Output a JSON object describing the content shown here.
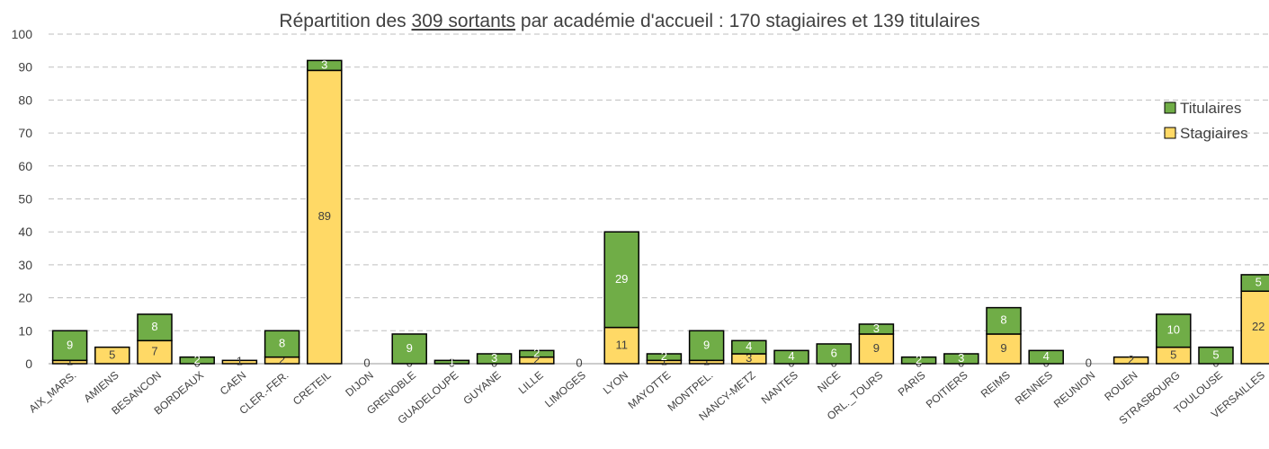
{
  "chart_data": {
    "type": "stacked_bar",
    "title": [
      "Répartition des ",
      "309 sortants",
      " par académie d'accueil : 170 stagiaires et 139 titulaires"
    ],
    "categories": [
      "AIX_MARS.",
      "AMIENS",
      "BESANCON",
      "BORDEAUX",
      "CAEN",
      "CLER.-FER.",
      "CRETEIL",
      "DIJON",
      "GRENOBLE",
      "GUADELOUPE",
      "GUYANE",
      "LILLE",
      "LIMOGES",
      "LYON",
      "MAYOTTE",
      "MONTPEL.",
      "NANCY-METZ",
      "NANTES",
      "NICE",
      "ORL._TOURS",
      "PARIS",
      "POITIERS",
      "REIMS",
      "RENNES",
      "REUNION",
      "ROUEN",
      "STRASBOURG",
      "TOULOUSE",
      "VERSAILLES"
    ],
    "series": [
      {
        "name": "Stagiaires",
        "color": "#ffd966",
        "values": [
          1,
          5,
          7,
          0,
          1,
          2,
          89,
          0,
          0,
          0,
          0,
          2,
          0,
          11,
          1,
          1,
          3,
          0,
          0,
          9,
          0,
          0,
          9,
          0,
          0,
          2,
          5,
          0,
          22
        ]
      },
      {
        "name": "Titulaires",
        "color": "#70ad47",
        "values": [
          9,
          0,
          8,
          2,
          0,
          8,
          3,
          0,
          9,
          1,
          3,
          2,
          0,
          29,
          2,
          9,
          4,
          4,
          6,
          3,
          2,
          3,
          8,
          4,
          0,
          0,
          10,
          5,
          5
        ]
      }
    ],
    "ylim": [
      0,
      100
    ],
    "yticks": [
      0,
      10,
      20,
      30,
      40,
      50,
      60,
      70,
      80,
      90,
      100
    ],
    "grid": true,
    "legend": "right"
  }
}
